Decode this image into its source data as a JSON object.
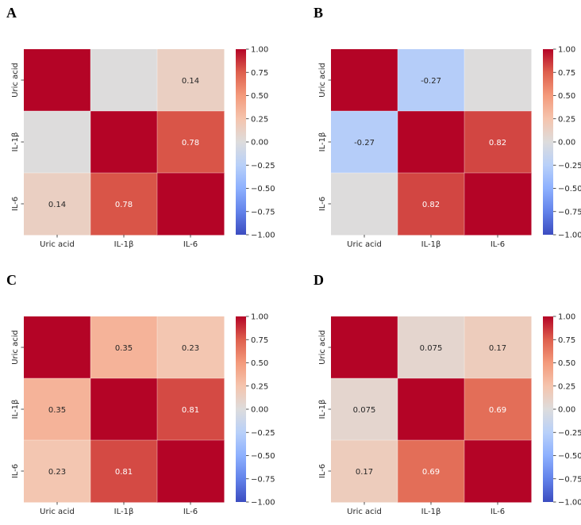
{
  "chart_data": [
    {
      "type": "heatmap",
      "panel_label": "A",
      "rows": [
        "Uric acid",
        "IL-1β",
        "IL-6"
      ],
      "columns": [
        "Uric acid",
        "IL-1β",
        "IL-6"
      ],
      "values": [
        [
          1.0,
          0.0,
          0.14
        ],
        [
          0.0,
          1.0,
          0.78
        ],
        [
          0.14,
          0.78,
          1.0
        ]
      ],
      "annotations": [
        [
          "",
          "",
          "0.14"
        ],
        [
          "",
          "",
          "0.78"
        ],
        [
          "0.14",
          "0.78",
          ""
        ]
      ],
      "colormap": "coolwarm",
      "colorbar": {
        "vmin": -1.0,
        "vmax": 1.0,
        "ticks": [
          "1.00",
          "0.75",
          "0.50",
          "0.25",
          "0.00",
          "−0.25",
          "−0.50",
          "−0.75",
          "−1.00"
        ]
      },
      "xlabel": "",
      "ylabel": ""
    },
    {
      "type": "heatmap",
      "panel_label": "B",
      "rows": [
        "Uric acid",
        "IL-1β",
        "IL-6"
      ],
      "columns": [
        "Uric acid",
        "IL-1β",
        "IL-6"
      ],
      "values": [
        [
          1.0,
          -0.27,
          0.0
        ],
        [
          -0.27,
          1.0,
          0.82
        ],
        [
          0.0,
          0.82,
          1.0
        ]
      ],
      "annotations": [
        [
          "",
          "-0.27",
          ""
        ],
        [
          "-0.27",
          "",
          "0.82"
        ],
        [
          "",
          "0.82",
          ""
        ]
      ],
      "colormap": "coolwarm",
      "colorbar": {
        "vmin": -1.0,
        "vmax": 1.0,
        "ticks": [
          "1.00",
          "0.75",
          "0.50",
          "0.25",
          "0.00",
          "−0.25",
          "−0.50",
          "−0.75",
          "−1.00"
        ]
      },
      "xlabel": "",
      "ylabel": ""
    },
    {
      "type": "heatmap",
      "panel_label": "C",
      "rows": [
        "Uric acid",
        "IL-1β",
        "IL-6"
      ],
      "columns": [
        "Uric acid",
        "IL-1β",
        "IL-6"
      ],
      "values": [
        [
          1.0,
          0.35,
          0.23
        ],
        [
          0.35,
          1.0,
          0.81
        ],
        [
          0.23,
          0.81,
          1.0
        ]
      ],
      "annotations": [
        [
          "",
          "0.35",
          "0.23"
        ],
        [
          "0.35",
          "",
          "0.81"
        ],
        [
          "0.23",
          "0.81",
          ""
        ]
      ],
      "colormap": "coolwarm",
      "colorbar": {
        "vmin": -1.0,
        "vmax": 1.0,
        "ticks": [
          "1.00",
          "0.75",
          "0.50",
          "0.25",
          "0.00",
          "−0.25",
          "−0.50",
          "−0.75",
          "−1.00"
        ]
      },
      "xlabel": "",
      "ylabel": ""
    },
    {
      "type": "heatmap",
      "panel_label": "D",
      "rows": [
        "Uric acid",
        "IL-1β",
        "IL-6"
      ],
      "columns": [
        "Uric acid",
        "IL-1β",
        "IL-6"
      ],
      "values": [
        [
          1.0,
          0.075,
          0.17
        ],
        [
          0.075,
          1.0,
          0.69
        ],
        [
          0.17,
          0.69,
          1.0
        ]
      ],
      "annotations": [
        [
          "",
          "0.075",
          "0.17"
        ],
        [
          "0.075",
          "",
          "0.69"
        ],
        [
          "0.17",
          "0.69",
          ""
        ]
      ],
      "colormap": "coolwarm",
      "colorbar": {
        "vmin": -1.0,
        "vmax": 1.0,
        "ticks": [
          "1.00",
          "0.75",
          "0.50",
          "0.25",
          "0.00",
          "−0.25",
          "−0.50",
          "−0.75",
          "−1.00"
        ]
      },
      "xlabel": "",
      "ylabel": ""
    }
  ]
}
